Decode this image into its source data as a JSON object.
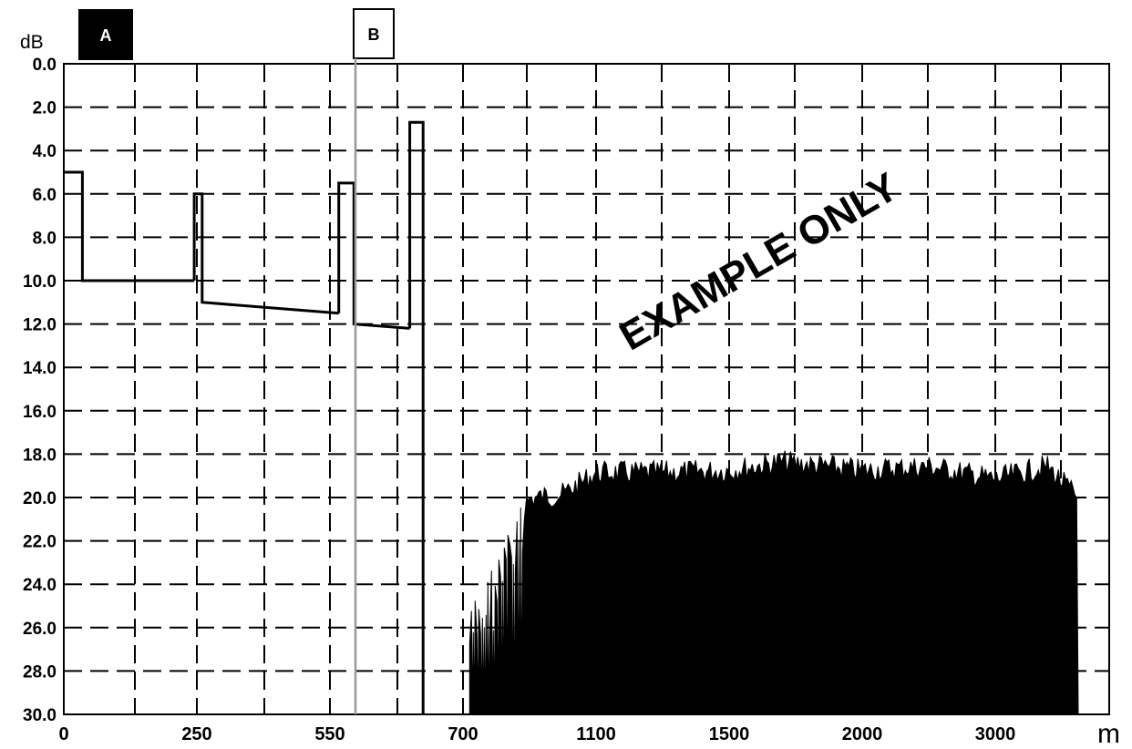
{
  "chart_data": {
    "type": "line",
    "ylabel": "dB",
    "xunit": "m",
    "y_axis_inverted": true,
    "ylim": [
      0,
      30
    ],
    "yticks": [
      "0.0",
      "2.0",
      "4.0",
      "6.0",
      "8.0",
      "10.0",
      "12.0",
      "14.0",
      "16.0",
      "18.0",
      "20.0",
      "22.0",
      "24.0",
      "26.0",
      "28.0",
      "30.0"
    ],
    "xtick_labels": [
      "0",
      "250",
      "550",
      "700",
      "1100",
      "1500",
      "2000",
      "3000"
    ],
    "grid": true,
    "grid_style": "dashed",
    "cursors": [
      {
        "label": "A",
        "style": "filled",
        "position": "left edge"
      },
      {
        "label": "B",
        "style": "outline",
        "position": "between 550 and 700"
      }
    ],
    "watermark": "EXAMPLE ONLY",
    "trace_segments": [
      {
        "x": [
          0,
          35,
          35,
          245
        ],
        "y": [
          5.0,
          5.0,
          10.0,
          10.0
        ]
      },
      {
        "x": [
          245,
          245,
          262,
          262,
          560
        ],
        "y": [
          10.0,
          6.0,
          6.0,
          11.0,
          11.5
        ]
      },
      {
        "x": [
          560,
          560,
          577,
          577,
          640
        ],
        "y": [
          11.5,
          5.5,
          5.5,
          12.0,
          12.2
        ]
      },
      {
        "x": [
          640,
          640,
          655,
          655
        ],
        "y": [
          12.2,
          2.7,
          2.7,
          30.0
        ]
      }
    ],
    "noise_floor": {
      "description": "dense noise region rising from 30 dB to about 18 dB",
      "envelope": [
        {
          "x": 720,
          "y": 25.0
        },
        {
          "x": 800,
          "y": 22.5
        },
        {
          "x": 850,
          "y": 21.0
        },
        {
          "x": 900,
          "y": 19.5
        },
        {
          "x": 1000,
          "y": 19.3
        },
        {
          "x": 1100,
          "y": 18.3
        },
        {
          "x": 1300,
          "y": 18.3
        },
        {
          "x": 1500,
          "y": 18.2
        },
        {
          "x": 1700,
          "y": 17.8
        },
        {
          "x": 2000,
          "y": 18.2
        },
        {
          "x": 2500,
          "y": 18.0
        },
        {
          "x": 3000,
          "y": 18.6
        },
        {
          "x": 3500,
          "y": 18.0
        },
        {
          "x": 3800,
          "y": 19.5
        }
      ]
    },
    "colors": {
      "trace": "#000000",
      "grid": "#000000",
      "background": "#ffffff"
    }
  }
}
